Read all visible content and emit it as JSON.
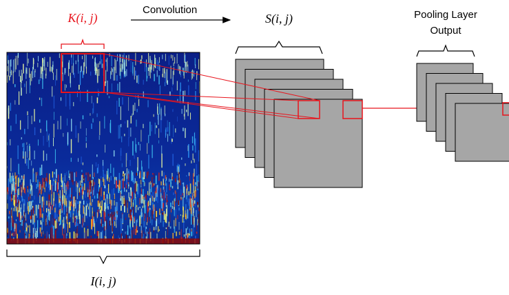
{
  "labels": {
    "kernel": "K(i, j)",
    "convolution": "Convolution",
    "feature_map": "S(i, j)",
    "pooling_line1": "Pooling Layer",
    "pooling_line2": "Output",
    "input": "I(i, j)"
  },
  "colors": {
    "highlight": "#e8141c",
    "map_fill": "#a6a6a6",
    "map_stroke": "#000000",
    "spectrogram_bg": "#0a1a7a"
  },
  "stacks": {
    "feature_map_count": 5,
    "pooling_count": 5
  }
}
